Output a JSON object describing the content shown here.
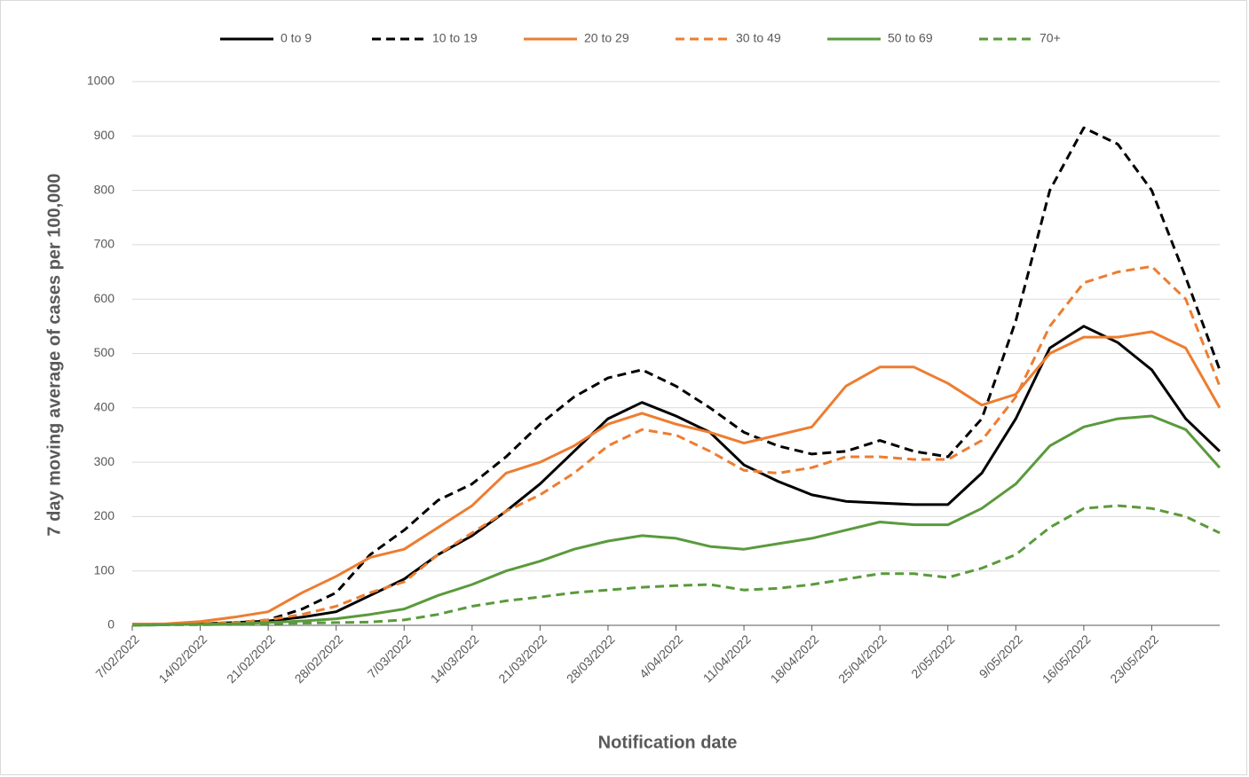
{
  "chart_data": {
    "type": "line",
    "x_label": "Notification date",
    "y_label": "7 day moving average of cases per 100,000",
    "categories": [
      "7/02/2022",
      null,
      "14/02/2022",
      null,
      "21/02/2022",
      null,
      "28/02/2022",
      null,
      "7/03/2022",
      null,
      "14/03/2022",
      null,
      "21/03/2022",
      null,
      "28/03/2022",
      null,
      "4/04/2022",
      null,
      "11/04/2022",
      null,
      "18/04/2022",
      null,
      "25/04/2022",
      null,
      "2/05/2022",
      null,
      "9/05/2022",
      null,
      "16/05/2022",
      null,
      "23/05/2022",
      null,
      null
    ],
    "series": [
      {
        "name": "0 to 9",
        "color": "#000000",
        "dashed": false,
        "values": [
          2,
          2,
          3,
          5,
          8,
          15,
          25,
          55,
          85,
          130,
          165,
          210,
          260,
          320,
          380,
          410,
          385,
          355,
          295,
          265,
          240,
          228,
          225,
          222,
          222,
          280,
          380,
          510,
          550,
          520,
          470,
          380,
          320
        ]
      },
      {
        "name": "10 to 19",
        "color": "#000000",
        "dashed": true,
        "values": [
          0,
          2,
          3,
          5,
          10,
          30,
          60,
          130,
          175,
          230,
          260,
          310,
          370,
          420,
          455,
          470,
          440,
          400,
          355,
          330,
          315,
          320,
          340,
          320,
          310,
          380,
          560,
          800,
          915,
          885,
          800,
          640,
          470
        ]
      },
      {
        "name": "20 to 29",
        "color": "#ed7d31",
        "dashed": false,
        "values": [
          2,
          3,
          7,
          15,
          25,
          60,
          90,
          125,
          140,
          180,
          220,
          280,
          300,
          330,
          370,
          390,
          370,
          355,
          335,
          350,
          365,
          440,
          475,
          475,
          445,
          405,
          425,
          500,
          530,
          530,
          540,
          510,
          400
        ]
      },
      {
        "name": "30 to 49",
        "color": "#ed7d31",
        "dashed": true,
        "values": [
          0,
          2,
          3,
          5,
          10,
          20,
          35,
          60,
          80,
          130,
          170,
          210,
          240,
          280,
          330,
          360,
          350,
          320,
          285,
          280,
          290,
          310,
          310,
          305,
          305,
          340,
          420,
          550,
          630,
          650,
          660,
          600,
          440
        ]
      },
      {
        "name": "50 to 69",
        "color": "#5a9a3c",
        "dashed": false,
        "values": [
          0,
          1,
          2,
          3,
          5,
          8,
          12,
          20,
          30,
          55,
          75,
          100,
          118,
          140,
          155,
          165,
          160,
          145,
          140,
          150,
          160,
          175,
          190,
          185,
          185,
          215,
          260,
          330,
          365,
          380,
          385,
          360,
          290
        ]
      },
      {
        "name": "70+",
        "color": "#5a9a3c",
        "dashed": true,
        "values": [
          0,
          1,
          1,
          2,
          3,
          4,
          5,
          6,
          10,
          20,
          35,
          45,
          52,
          60,
          65,
          70,
          73,
          75,
          65,
          68,
          75,
          85,
          95,
          95,
          88,
          105,
          130,
          180,
          215,
          220,
          215,
          200,
          170
        ]
      }
    ],
    "ylim": [
      0,
      1000
    ],
    "yticks": [
      0,
      100,
      200,
      300,
      400,
      500,
      600,
      700,
      800,
      900,
      1000
    ],
    "grid": true,
    "legend": "top"
  }
}
